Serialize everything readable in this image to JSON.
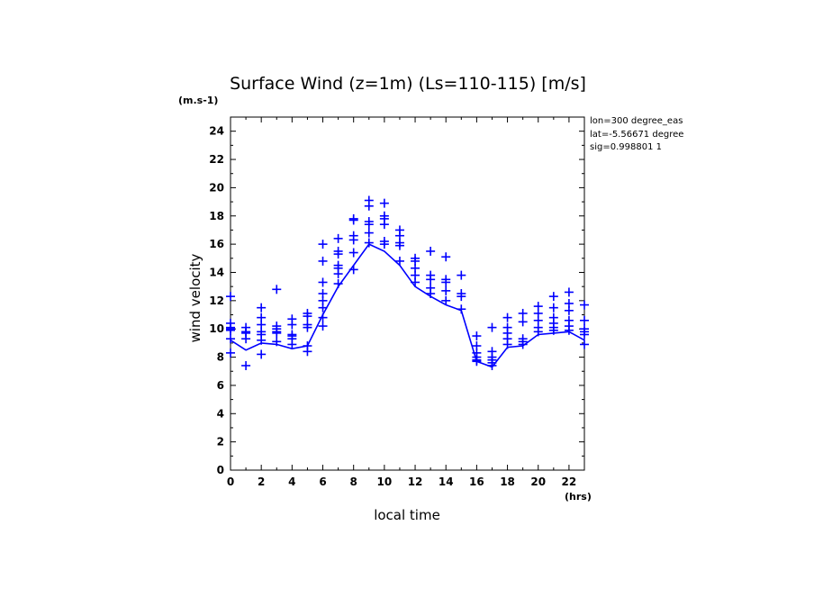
{
  "chart_data": {
    "type": "line",
    "title": "Surface Wind (z=1m) (Ls=110-115) [m/s]",
    "xlabel": "local time",
    "ylabel": "wind velocity",
    "x_unit": "(hrs)",
    "y_unit": "(m.s-1)",
    "xlim": [
      0,
      23
    ],
    "ylim": [
      0,
      25
    ],
    "x_ticks": [
      "0",
      "2",
      "4",
      "6",
      "8",
      "10",
      "12",
      "14",
      "16",
      "18",
      "20",
      "22"
    ],
    "y_ticks": [
      "0",
      "2",
      "4",
      "6",
      "8",
      "10",
      "12",
      "14",
      "16",
      "18",
      "20",
      "22",
      "24"
    ],
    "info": [
      "lon=300 degree_eas",
      "lat=-5.56671 degree",
      "sig=0.998801 1"
    ],
    "color": "#0000ff",
    "grid": false,
    "series": [
      {
        "style": "line",
        "x": [
          0,
          1,
          2,
          3,
          4,
          5,
          6,
          7,
          8,
          9,
          10,
          11,
          12,
          13,
          14,
          15,
          16,
          17,
          18,
          19,
          20,
          21,
          22,
          23
        ],
        "values": [
          9.2,
          8.5,
          9.0,
          8.9,
          8.6,
          8.8,
          11.0,
          13.0,
          14.5,
          16.0,
          15.5,
          14.5,
          13.0,
          12.3,
          11.7,
          11.3,
          7.7,
          7.3,
          8.7,
          8.8,
          9.6,
          9.7,
          9.8,
          9.2
        ]
      },
      {
        "style": "markers",
        "marker": "+",
        "points": [
          [
            0,
            12.3
          ],
          [
            0,
            10.4
          ],
          [
            0,
            10.1
          ],
          [
            0,
            10.0
          ],
          [
            0,
            9.9
          ],
          [
            0,
            9.3
          ],
          [
            0,
            8.3
          ],
          [
            1,
            10.1
          ],
          [
            1,
            9.8
          ],
          [
            1,
            9.7
          ],
          [
            1,
            9.3
          ],
          [
            1,
            7.4
          ],
          [
            2,
            11.5
          ],
          [
            2,
            10.8
          ],
          [
            2,
            10.3
          ],
          [
            2,
            9.8
          ],
          [
            2,
            9.6
          ],
          [
            2,
            9.2
          ],
          [
            2,
            8.2
          ],
          [
            3,
            12.8
          ],
          [
            3,
            10.2
          ],
          [
            3,
            10.0
          ],
          [
            3,
            9.8
          ],
          [
            3,
            9.7
          ],
          [
            3,
            9.1
          ],
          [
            4,
            10.7
          ],
          [
            4,
            10.3
          ],
          [
            4,
            9.6
          ],
          [
            4,
            9.5
          ],
          [
            4,
            9.3
          ],
          [
            4,
            8.9
          ],
          [
            5,
            11.1
          ],
          [
            5,
            10.9
          ],
          [
            5,
            10.3
          ],
          [
            5,
            10.1
          ],
          [
            5,
            8.8
          ],
          [
            5,
            8.4
          ],
          [
            6,
            16.0
          ],
          [
            6,
            14.8
          ],
          [
            6,
            13.3
          ],
          [
            6,
            12.5
          ],
          [
            6,
            12.0
          ],
          [
            6,
            11.5
          ],
          [
            6,
            10.8
          ],
          [
            6,
            10.2
          ],
          [
            7,
            16.4
          ],
          [
            7,
            15.5
          ],
          [
            7,
            15.3
          ],
          [
            7,
            14.5
          ],
          [
            7,
            14.3
          ],
          [
            7,
            13.9
          ],
          [
            7,
            13.2
          ],
          [
            8,
            17.8
          ],
          [
            8,
            17.7
          ],
          [
            8,
            16.6
          ],
          [
            8,
            16.3
          ],
          [
            8,
            15.4
          ],
          [
            8,
            14.2
          ],
          [
            9,
            19.1
          ],
          [
            9,
            18.7
          ],
          [
            9,
            17.6
          ],
          [
            9,
            17.4
          ],
          [
            9,
            16.8
          ],
          [
            9,
            16.1
          ],
          [
            10,
            18.9
          ],
          [
            10,
            18.0
          ],
          [
            10,
            17.8
          ],
          [
            10,
            17.4
          ],
          [
            10,
            16.2
          ],
          [
            10,
            16.0
          ],
          [
            11,
            17.0
          ],
          [
            11,
            16.6
          ],
          [
            11,
            16.1
          ],
          [
            11,
            15.9
          ],
          [
            11,
            14.8
          ],
          [
            12,
            15.0
          ],
          [
            12,
            14.8
          ],
          [
            12,
            14.3
          ],
          [
            12,
            13.8
          ],
          [
            12,
            13.3
          ],
          [
            13,
            15.5
          ],
          [
            13,
            13.8
          ],
          [
            13,
            13.5
          ],
          [
            13,
            12.9
          ],
          [
            13,
            12.5
          ],
          [
            14,
            15.1
          ],
          [
            14,
            13.5
          ],
          [
            14,
            13.3
          ],
          [
            14,
            12.7
          ],
          [
            14,
            12.0
          ],
          [
            15,
            13.8
          ],
          [
            15,
            12.5
          ],
          [
            15,
            12.3
          ],
          [
            15,
            11.4
          ],
          [
            16,
            9.5
          ],
          [
            16,
            8.8
          ],
          [
            16,
            8.3
          ],
          [
            16,
            8.0
          ],
          [
            16,
            7.8
          ],
          [
            16,
            7.7
          ],
          [
            17,
            10.1
          ],
          [
            17,
            8.4
          ],
          [
            17,
            8.0
          ],
          [
            17,
            7.8
          ],
          [
            17,
            7.6
          ],
          [
            17,
            7.4
          ],
          [
            18,
            10.8
          ],
          [
            18,
            10.1
          ],
          [
            18,
            9.7
          ],
          [
            18,
            9.3
          ],
          [
            18,
            8.9
          ],
          [
            19,
            11.1
          ],
          [
            19,
            10.5
          ],
          [
            19,
            9.3
          ],
          [
            19,
            9.1
          ],
          [
            19,
            8.9
          ],
          [
            20,
            11.6
          ],
          [
            20,
            11.1
          ],
          [
            20,
            10.6
          ],
          [
            20,
            10.1
          ],
          [
            20,
            9.8
          ],
          [
            21,
            12.3
          ],
          [
            21,
            11.5
          ],
          [
            21,
            10.8
          ],
          [
            21,
            10.4
          ],
          [
            21,
            10.1
          ],
          [
            21,
            9.9
          ],
          [
            22,
            12.6
          ],
          [
            22,
            11.8
          ],
          [
            22,
            11.3
          ],
          [
            22,
            10.6
          ],
          [
            22,
            10.2
          ],
          [
            22,
            9.9
          ],
          [
            23,
            11.7
          ],
          [
            23,
            10.6
          ],
          [
            23,
            10.0
          ],
          [
            23,
            9.8
          ],
          [
            23,
            9.6
          ],
          [
            23,
            8.9
          ]
        ]
      }
    ]
  }
}
